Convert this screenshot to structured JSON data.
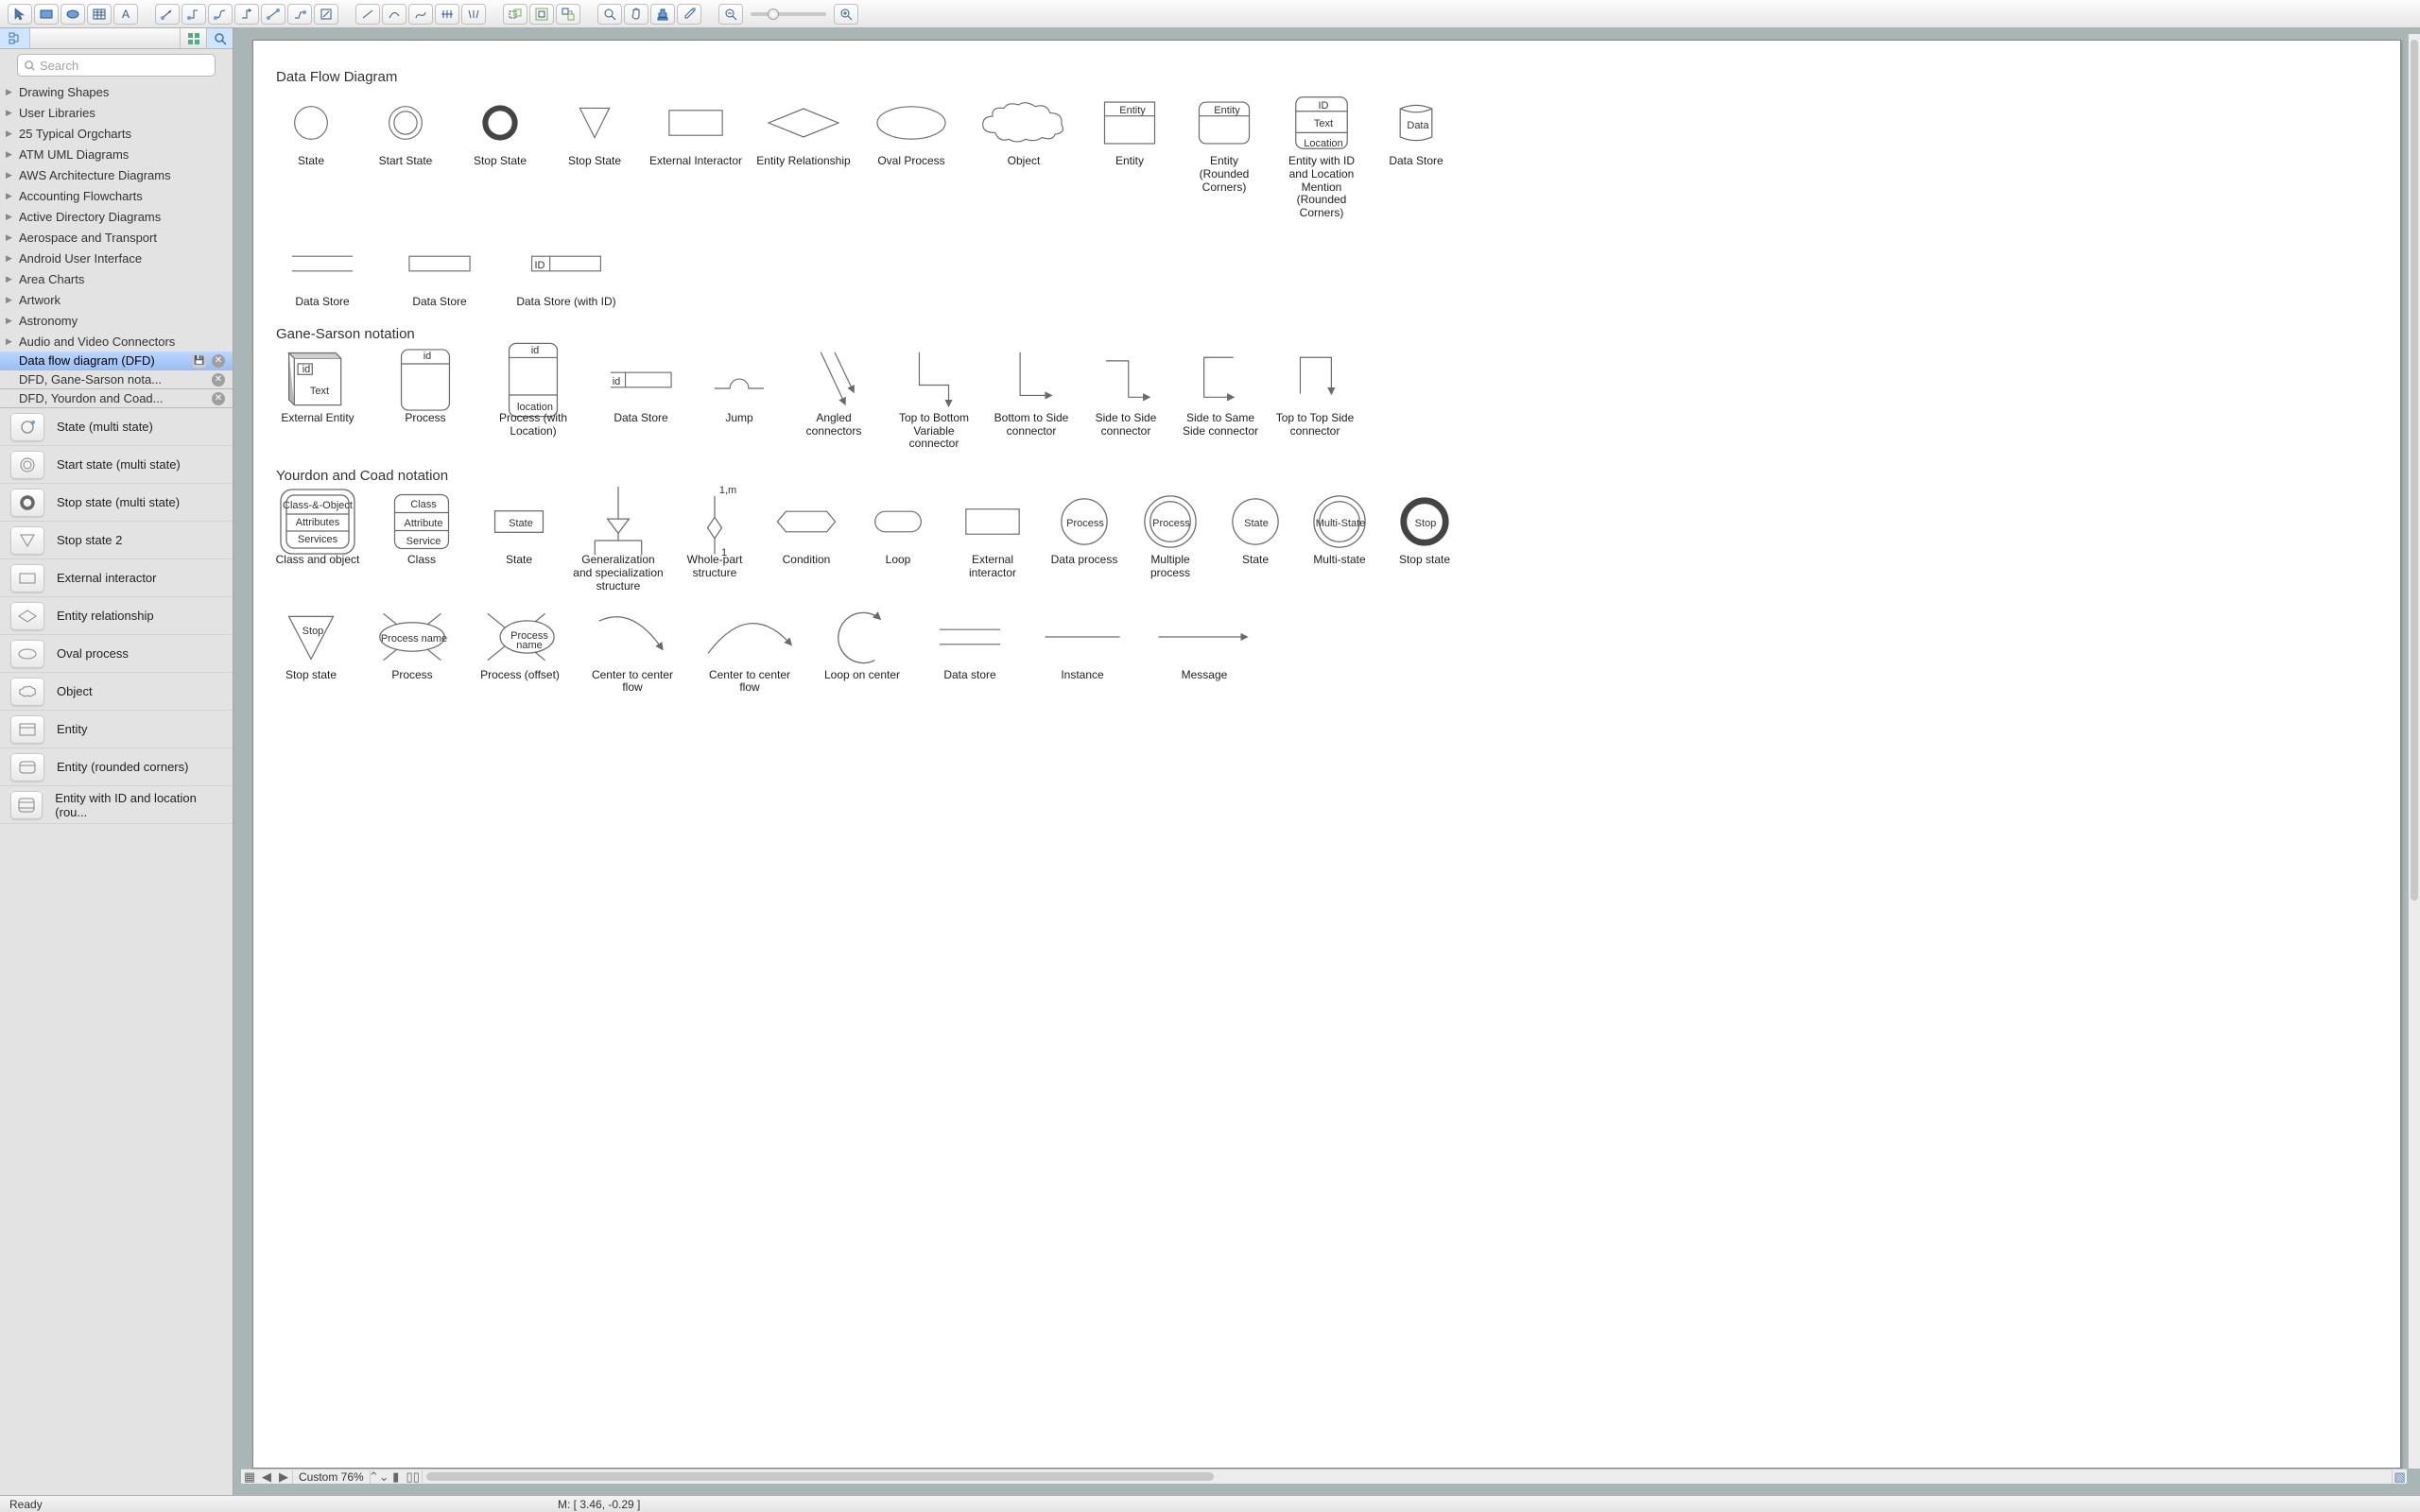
{
  "toolbar_groups": {
    "g1": [
      "pointer",
      "rect",
      "ellipse",
      "grid-table",
      "text"
    ],
    "g2": [
      "connector-a",
      "connector-b",
      "connector-c",
      "connector-d",
      "connector-e",
      "connector-f",
      "connector-g"
    ],
    "g3": [
      "line-a",
      "line-b",
      "line-c",
      "line-d",
      "line-e"
    ],
    "g4": [
      "group-a",
      "group-b",
      "group-c"
    ],
    "g5": [
      "zoom-in",
      "hand",
      "stamp",
      "dropper"
    ],
    "g6_zoom": {
      "out": "−",
      "in": "+"
    }
  },
  "search_placeholder": "Search",
  "libraries": [
    "Drawing Shapes",
    "User Libraries",
    "25 Typical Orgcharts",
    "ATM UML Diagrams",
    "AWS Architecture Diagrams",
    "Accounting Flowcharts",
    "Active Directory Diagrams",
    "Aerospace and Transport",
    "Android User Interface",
    "Area Charts",
    "Artwork",
    "Astronomy",
    "Audio and Video Connectors"
  ],
  "stencil_tabs": [
    {
      "label": "Data flow diagram (DFD)",
      "selected": true,
      "closable": true,
      "save": true
    },
    {
      "label": "DFD, Gane-Sarson nota...",
      "selected": false,
      "closable": true
    },
    {
      "label": "DFD, Yourdon and Coad...",
      "selected": false,
      "closable": true
    }
  ],
  "palette_shapes": [
    {
      "label": "State (multi state)",
      "kind": "circle-dot"
    },
    {
      "label": "Start state (multi state)",
      "kind": "double-circle"
    },
    {
      "label": "Stop state (multi state)",
      "kind": "thick-ring"
    },
    {
      "label": "Stop state 2",
      "kind": "triangle-down"
    },
    {
      "label": "External interactor",
      "kind": "rect"
    },
    {
      "label": "Entity relationship",
      "kind": "diamond"
    },
    {
      "label": "Oval process",
      "kind": "ellipse"
    },
    {
      "label": "Object",
      "kind": "cloud"
    },
    {
      "label": "Entity",
      "kind": "rect-header"
    },
    {
      "label": "Entity (rounded corners)",
      "kind": "round-header"
    },
    {
      "label": "Entity with ID and location (rou...",
      "kind": "triple-header"
    }
  ],
  "zoom_label": "Custom 76%",
  "status_ready": "Ready",
  "status_coords": "M: [ 3.46, -0.29 ]",
  "sections": {
    "dfd": {
      "title": "Data Flow Diagram",
      "row1": [
        {
          "cap": "State",
          "svg": "circle"
        },
        {
          "cap": "Start State",
          "svg": "double-circle"
        },
        {
          "cap": "Stop State",
          "svg": "thick-ring"
        },
        {
          "cap": "Stop State",
          "svg": "triangle-down"
        },
        {
          "cap": "External Interactor",
          "svg": "rect",
          "w": 100
        },
        {
          "cap": "Entity Relationship",
          "svg": "diamond",
          "w": 100
        },
        {
          "cap": "Oval Process",
          "svg": "ellipse",
          "w": 100
        },
        {
          "cap": "Object",
          "svg": "cloud",
          "w": 110
        },
        {
          "cap": "Entity",
          "svg": "entity-header",
          "w": 86,
          "text": "Entity"
        },
        {
          "cap": "Entity (Rounded Corners)",
          "svg": "entity-header-round",
          "w": 86,
          "text": "Entity"
        },
        {
          "cap": "Entity with ID and Location Mention (Rounded Corners)",
          "svg": "entity-idloc",
          "w": 92,
          "texts": [
            "ID",
            "Text",
            "Location"
          ]
        },
        {
          "cap": "Data Store",
          "svg": "cylinder",
          "w": 80,
          "text": "Data"
        }
      ],
      "row2": [
        {
          "cap": "Data Store",
          "svg": "open-rect",
          "w": 110
        },
        {
          "cap": "Data Store",
          "svg": "rect-line",
          "w": 110
        },
        {
          "cap": "Data Store (with ID)",
          "svg": "rect-id",
          "w": 130,
          "text": "ID"
        }
      ]
    },
    "gane": {
      "title": "Gane-Sarson notation",
      "row": [
        {
          "cap": "External Entity",
          "svg": "box3d",
          "w": 100,
          "texts": [
            "id",
            "Text"
          ]
        },
        {
          "cap": "Process",
          "svg": "process-gs",
          "w": 100,
          "text": "id"
        },
        {
          "cap": "Process (with Location)",
          "svg": "process-gs-loc",
          "w": 100,
          "texts": [
            "id",
            "location"
          ]
        },
        {
          "cap": "Data Store",
          "svg": "open-rect-id",
          "w": 100,
          "text": "id"
        },
        {
          "cap": "Jump",
          "svg": "jump",
          "w": 80
        },
        {
          "cap": "Angled connectors",
          "svg": "conn-angled",
          "w": 92
        },
        {
          "cap": "Top to Bottom Variable connector",
          "svg": "conn-tbv",
          "w": 92
        },
        {
          "cap": "Bottom to Side connector",
          "svg": "conn-bs",
          "w": 86
        },
        {
          "cap": "Side to Side connector",
          "svg": "conn-ss",
          "w": 86
        },
        {
          "cap": "Side to Same Side connector",
          "svg": "conn-sss",
          "w": 86
        },
        {
          "cap": "Top to Top Side connector",
          "svg": "conn-tts",
          "w": 86
        }
      ]
    },
    "yourdon": {
      "title": "Yourdon and Coad notation",
      "row1": [
        {
          "cap": "Class and object",
          "svg": "class-obj",
          "w": 100,
          "texts": [
            "Class-&-Object",
            "Attributes",
            "Services"
          ]
        },
        {
          "cap": "Class",
          "svg": "class-box",
          "w": 92,
          "texts": [
            "Class",
            "Attribute",
            "Service"
          ]
        },
        {
          "cap": "State",
          "svg": "state-box",
          "w": 86,
          "text": "State"
        },
        {
          "cap": "Generalization and specialization structure",
          "svg": "gen-spec",
          "w": 96
        },
        {
          "cap": "Whole-part structure",
          "svg": "whole-part",
          "w": 80,
          "texts": [
            "1,m",
            "1"
          ]
        },
        {
          "cap": "Condition",
          "svg": "hexagon",
          "w": 86
        },
        {
          "cap": "Loop",
          "svg": "round-rect",
          "w": 80
        },
        {
          "cap": "External interactor",
          "svg": "rect",
          "w": 92
        },
        {
          "cap": "Data process",
          "svg": "circle-text",
          "w": 74,
          "text": "Process"
        },
        {
          "cap": "Multiple process",
          "svg": "double-circle-text",
          "w": 80,
          "text": "Process"
        },
        {
          "cap": "State",
          "svg": "circle-text",
          "w": 72,
          "text": "State"
        },
        {
          "cap": "Multi-state",
          "svg": "double-circle-text",
          "w": 78,
          "text": "Multi-State"
        },
        {
          "cap": "Stop state",
          "svg": "thick-ring-text",
          "w": 74,
          "text": "Stop"
        }
      ],
      "row2": [
        {
          "cap": "Stop state",
          "svg": "triangle-down-text",
          "w": 86,
          "text": "Stop"
        },
        {
          "cap": "Process",
          "svg": "ellipse-star",
          "w": 100,
          "text": "Process name"
        },
        {
          "cap": "Process (offset)",
          "svg": "ellipse-star-off",
          "w": 100,
          "text": "Process name"
        },
        {
          "cap": "Center to center flow",
          "svg": "arc-ctr",
          "w": 110
        },
        {
          "cap": "Center to center flow",
          "svg": "arc-ctr2",
          "w": 110
        },
        {
          "cap": "Loop on center",
          "svg": "loop-arc",
          "w": 100
        },
        {
          "cap": "Data store",
          "svg": "open-rect",
          "w": 100
        },
        {
          "cap": "Instance",
          "svg": "line-h",
          "w": 110
        },
        {
          "cap": "Message",
          "svg": "arrow-h",
          "w": 120
        }
      ]
    }
  }
}
